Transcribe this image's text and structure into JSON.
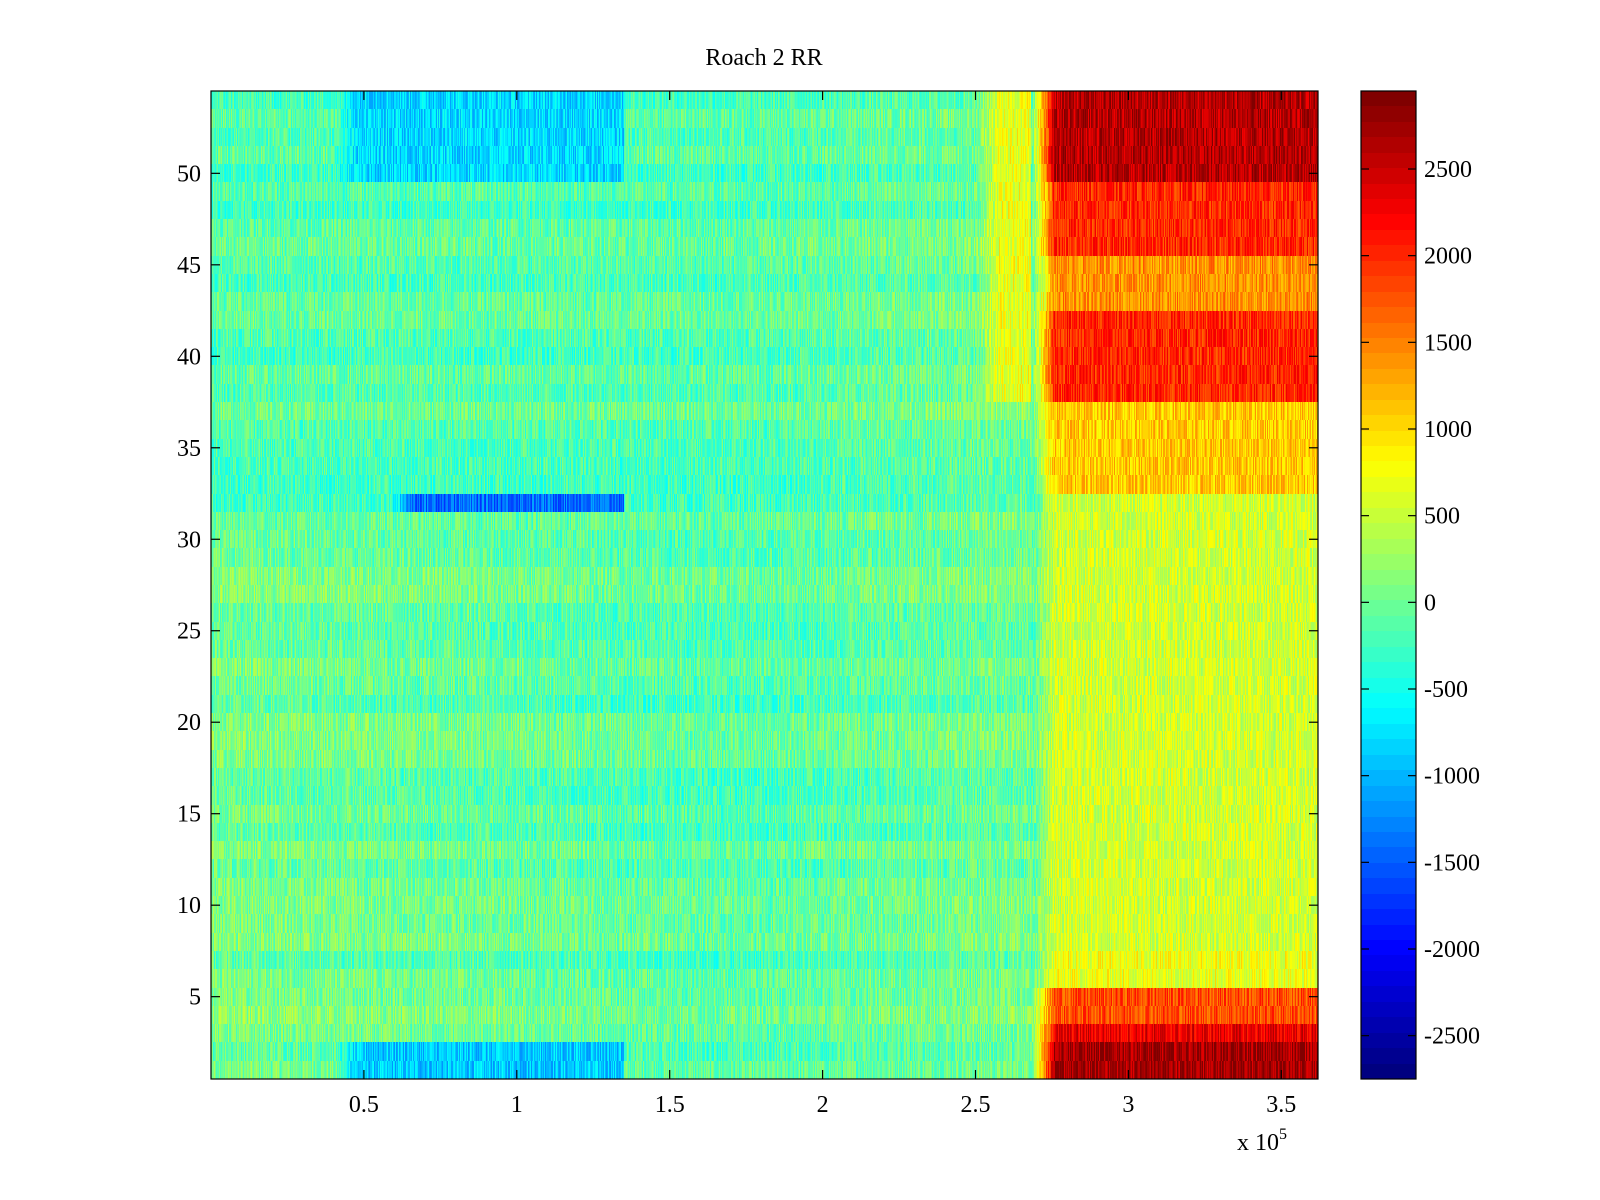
{
  "chart_data": {
    "type": "heatmap",
    "title": "Roach 2 RR",
    "xlabel": "",
    "ylabel": "",
    "x_multiplier": "x 10",
    "x_multiplier_exp": "5",
    "xlim": [
      0,
      3.62
    ],
    "ylim": [
      0.5,
      54.5
    ],
    "x_ticks": [
      {
        "value": 0.5,
        "label": "0.5"
      },
      {
        "value": 1,
        "label": "1"
      },
      {
        "value": 1.5,
        "label": "1.5"
      },
      {
        "value": 2,
        "label": "2"
      },
      {
        "value": 2.5,
        "label": "2.5"
      },
      {
        "value": 3,
        "label": "3"
      },
      {
        "value": 3.5,
        "label": "3.5"
      }
    ],
    "y_ticks": [
      {
        "value": 5,
        "label": "5"
      },
      {
        "value": 10,
        "label": "10"
      },
      {
        "value": 15,
        "label": "15"
      },
      {
        "value": 20,
        "label": "20"
      },
      {
        "value": 25,
        "label": "25"
      },
      {
        "value": 30,
        "label": "30"
      },
      {
        "value": 35,
        "label": "35"
      },
      {
        "value": 40,
        "label": "40"
      },
      {
        "value": 45,
        "label": "45"
      },
      {
        "value": 50,
        "label": "50"
      }
    ],
    "colorbar": {
      "clim": [
        -2750,
        2950
      ],
      "colormap": "jet",
      "ticks": [
        {
          "value": 2500,
          "label": "2500"
        },
        {
          "value": 2000,
          "label": "2000"
        },
        {
          "value": 1500,
          "label": "1500"
        },
        {
          "value": 1000,
          "label": "1000"
        },
        {
          "value": 500,
          "label": "500"
        },
        {
          "value": 0,
          "label": "0"
        },
        {
          "value": -500,
          "label": "-500"
        },
        {
          "value": -1000,
          "label": "-1000"
        },
        {
          "value": -1500,
          "label": "-1500"
        },
        {
          "value": -2000,
          "label": "-2000"
        },
        {
          "value": -2500,
          "label": "-2500"
        }
      ]
    },
    "rows": 54,
    "regions": [
      {
        "rows": [
          1,
          2
        ],
        "x_range": [
          2.68,
          3.62
        ],
        "value": 2700
      },
      {
        "rows": [
          3,
          3
        ],
        "x_range": [
          2.68,
          3.62
        ],
        "value": 2300
      },
      {
        "rows": [
          4,
          5
        ],
        "x_range": [
          2.68,
          3.62
        ],
        "value": 1800
      },
      {
        "rows": [
          6,
          7
        ],
        "x_range": [
          2.68,
          3.62
        ],
        "value": 700
      },
      {
        "rows": [
          1,
          2
        ],
        "x_range": [
          0.4,
          1.35
        ],
        "value": -900
      },
      {
        "rows": [
          38,
          42
        ],
        "x_range": [
          2.68,
          3.62
        ],
        "value": 2000
      },
      {
        "rows": [
          43,
          45
        ],
        "x_range": [
          2.68,
          3.62
        ],
        "value": 1400
      },
      {
        "rows": [
          46,
          49
        ],
        "x_range": [
          2.68,
          3.62
        ],
        "value": 2000
      },
      {
        "rows": [
          50,
          54
        ],
        "x_range": [
          2.68,
          3.62
        ],
        "value": 2600
      },
      {
        "rows": [
          33,
          37
        ],
        "x_range": [
          2.68,
          3.62
        ],
        "value": 1100
      },
      {
        "rows": [
          8,
          32
        ],
        "x_range": [
          2.68,
          3.62
        ],
        "value": 550
      },
      {
        "rows": [
          32,
          32
        ],
        "x_range": [
          0.58,
          1.35
        ],
        "value": -1400
      },
      {
        "rows": [
          50,
          54
        ],
        "x_range": [
          0.4,
          1.35
        ],
        "value": -800
      },
      {
        "rows": [
          38,
          54
        ],
        "x_range": [
          2.5,
          2.68
        ],
        "value": 700
      }
    ]
  }
}
